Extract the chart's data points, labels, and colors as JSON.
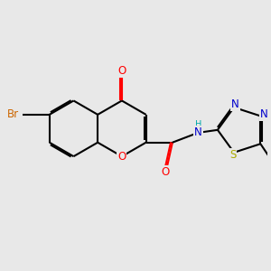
{
  "background_color": "#e8e8e8",
  "bond_color": "#000000",
  "bond_width": 1.5,
  "atom_colors": {
    "O": "#ff0000",
    "N": "#0000cc",
    "S": "#aaaa00",
    "Br": "#cc6600",
    "H": "#00aaaa",
    "C": "#000000"
  },
  "font_size": 8.5,
  "fig_size": [
    3.0,
    3.0
  ],
  "dpi": 100
}
